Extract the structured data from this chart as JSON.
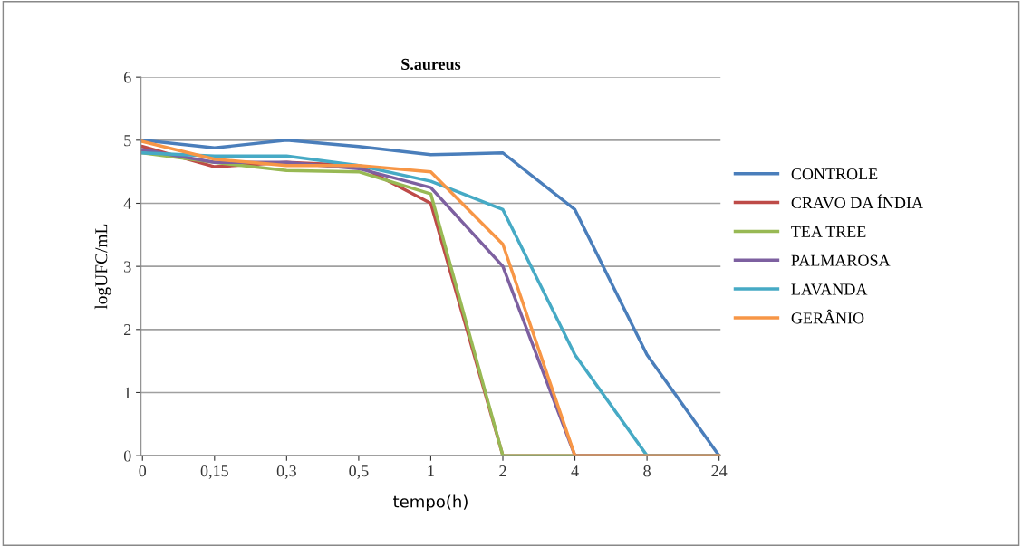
{
  "chart_data": {
    "type": "line",
    "title": "S.aureus",
    "xlabel": "tempo(h)",
    "ylabel": "logUFC/mL",
    "categories": [
      "0",
      "0,15",
      "0,3",
      "0,5",
      "1",
      "2",
      "4",
      "8",
      "24"
    ],
    "series": [
      {
        "name": "CONTROLE",
        "color": "#4a7ebb",
        "values": [
          5.0,
          4.88,
          5.0,
          4.9,
          4.77,
          4.8,
          3.9,
          1.6,
          0
        ]
      },
      {
        "name": "CRAVO DA ÍNDIA",
        "color": "#be4b48",
        "values": [
          4.9,
          4.58,
          4.65,
          4.6,
          4.0,
          0,
          0,
          0,
          0
        ]
      },
      {
        "name": "TEA TREE",
        "color": "#98b954",
        "values": [
          4.8,
          4.65,
          4.52,
          4.5,
          4.15,
          0,
          0,
          0,
          0
        ]
      },
      {
        "name": "PALMAROSA",
        "color": "#7d60a0",
        "values": [
          4.85,
          4.65,
          4.65,
          4.55,
          4.25,
          3.0,
          0,
          0,
          0
        ]
      },
      {
        "name": "LAVANDA",
        "color": "#46aac5",
        "values": [
          4.8,
          4.75,
          4.75,
          4.6,
          4.35,
          3.9,
          1.6,
          0,
          0
        ]
      },
      {
        "name": "GERÂNIO",
        "color": "#f79646",
        "values": [
          4.98,
          4.7,
          4.6,
          4.6,
          4.5,
          3.35,
          0,
          0,
          0
        ]
      }
    ],
    "ylim": [
      0,
      6
    ],
    "yticks": [
      0,
      1,
      2,
      3,
      4,
      5,
      6
    ],
    "grid": "y",
    "legend": "right"
  }
}
